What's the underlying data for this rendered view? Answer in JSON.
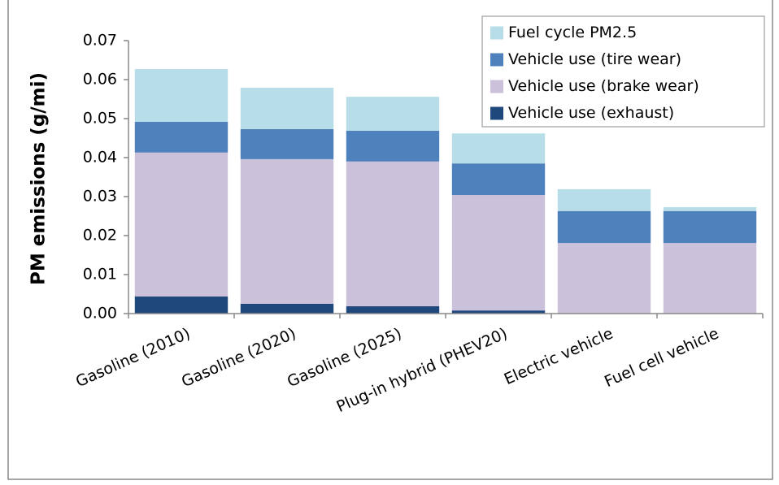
{
  "chart_data": {
    "type": "stacked_bar",
    "y_label": "PM emissions (g/mi)",
    "categories": [
      "Gasoline (2010)",
      "Gasoline (2020)",
      "Gasoline (2025)",
      "Plug-in hybrid (PHEV20)",
      "Electric vehicle",
      "Fuel cell vehicle"
    ],
    "series": [
      {
        "name": "Vehicle use (exhaust)",
        "color": "#1f497d",
        "values": [
          0.0044,
          0.0025,
          0.0019,
          0.0008,
          0,
          0
        ]
      },
      {
        "name": "Vehicle use (brake wear)",
        "color": "#ccc1da",
        "values": [
          0.0369,
          0.0371,
          0.0371,
          0.0296,
          0.0181,
          0.0181
        ]
      },
      {
        "name": "Vehicle use (tire wear)",
        "color": "#4f81bd",
        "values": [
          0.0079,
          0.0077,
          0.0079,
          0.0081,
          0.0082,
          0.0082
        ]
      },
      {
        "name": "Fuel cycle PM2.5",
        "color": "#b7dee8",
        "values": [
          0.0135,
          0.0106,
          0.0087,
          0.0077,
          0.0056,
          0.001
        ]
      }
    ],
    "ylim": [
      0,
      0.07
    ],
    "yticks": [
      {
        "value": 0,
        "label": "0.00"
      },
      0.01,
      0.02,
      0.03,
      0.04,
      0.05,
      0.06,
      0.07
    ],
    "legend": "upper right",
    "grid": false
  }
}
